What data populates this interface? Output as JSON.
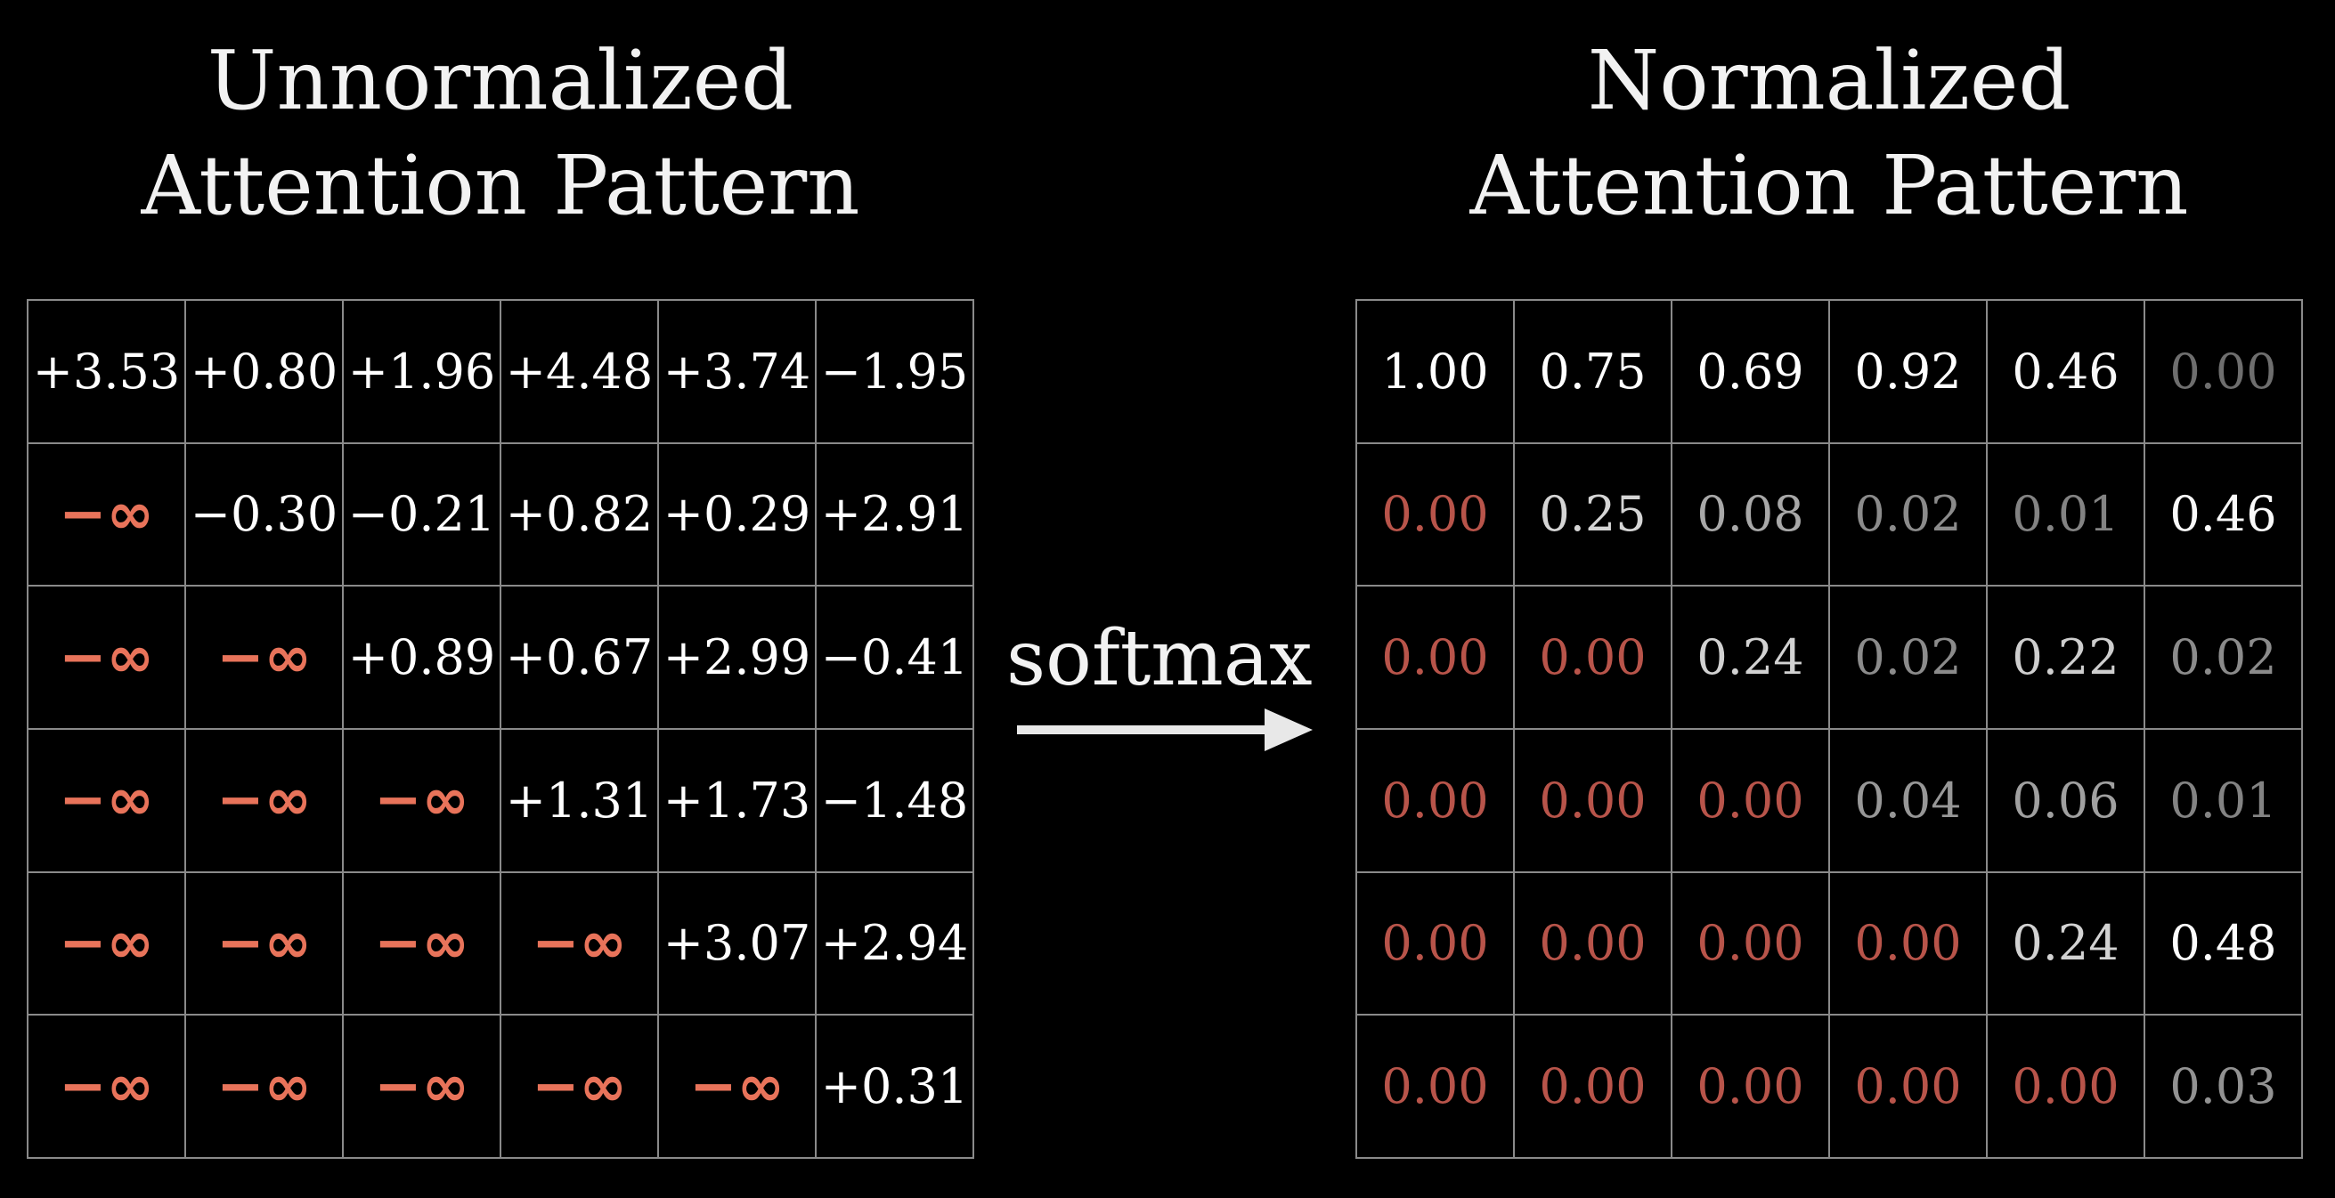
{
  "colors": {
    "background": "#000000",
    "text": "#ffffff",
    "neg_inf": "#e8735a",
    "masked_zero": "#b8544a",
    "grid_line": "#8a8a8a"
  },
  "left_panel": {
    "title_line1": "Unnormalized",
    "title_line2": "Attention Pattern",
    "rows": [
      [
        "+3.53",
        "+0.80",
        "+1.96",
        "+4.48",
        "+3.74",
        "−1.95"
      ],
      [
        "−∞",
        "−0.30",
        "−0.21",
        "+0.82",
        "+0.29",
        "+2.91"
      ],
      [
        "−∞",
        "−∞",
        "+0.89",
        "+0.67",
        "+2.99",
        "−0.41"
      ],
      [
        "−∞",
        "−∞",
        "−∞",
        "+1.31",
        "+1.73",
        "−1.48"
      ],
      [
        "−∞",
        "−∞",
        "−∞",
        "−∞",
        "+3.07",
        "+2.94"
      ],
      [
        "−∞",
        "−∞",
        "−∞",
        "−∞",
        "−∞",
        "+0.31"
      ]
    ]
  },
  "operation": {
    "label": "softmax",
    "arrow_icon": "right-arrow-icon"
  },
  "right_panel": {
    "title_line1": "Normalized",
    "title_line2": "Attention Pattern",
    "rows": [
      [
        "1.00",
        "0.75",
        "0.69",
        "0.92",
        "0.46",
        "0.00"
      ],
      [
        "0.00",
        "0.25",
        "0.08",
        "0.02",
        "0.01",
        "0.46"
      ],
      [
        "0.00",
        "0.00",
        "0.24",
        "0.02",
        "0.22",
        "0.02"
      ],
      [
        "0.00",
        "0.00",
        "0.00",
        "0.04",
        "0.06",
        "0.01"
      ],
      [
        "0.00",
        "0.00",
        "0.00",
        "0.00",
        "0.24",
        "0.48"
      ],
      [
        "0.00",
        "0.00",
        "0.00",
        "0.00",
        "0.00",
        "0.03"
      ]
    ]
  }
}
